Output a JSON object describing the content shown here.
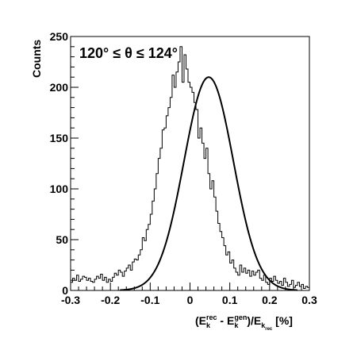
{
  "chart_data": {
    "type": "histogram",
    "title": "",
    "annotation": "120° ≤ θ ≤ 124°",
    "ylabel": "Counts",
    "xlabel": "(E_k^rec − E_k^gen)/E_k_rec [%]",
    "xlabel_parts": {
      "open": "(E",
      "sub1": "k",
      "sup1": "rec",
      "minus": " - E",
      "sub2": "k",
      "sup2": "gen",
      "mid": ")/E",
      "sub3": "k",
      "subsub3": "rec",
      "unit": " [%]"
    },
    "xlim": [
      -0.3,
      0.3
    ],
    "ylim": [
      0,
      250
    ],
    "xticks": [
      "-0.3",
      "-0.2",
      "-0.1",
      "0",
      "0.1",
      "0.2",
      "0.3"
    ],
    "yticks": [
      "0",
      "50",
      "100",
      "150",
      "200",
      "250"
    ],
    "grid": false,
    "bin_width": 0.005,
    "bin_edges_start": -0.3,
    "counts": [
      8,
      12,
      10,
      15,
      9,
      11,
      14,
      13,
      10,
      12,
      9,
      8,
      11,
      14,
      12,
      16,
      10,
      13,
      8,
      11,
      9,
      13,
      17,
      15,
      20,
      18,
      14,
      19,
      22,
      25,
      20,
      28,
      31,
      30,
      35,
      40,
      52,
      49,
      60,
      65,
      75,
      88,
      100,
      115,
      130,
      140,
      158,
      160,
      172,
      180,
      190,
      212,
      200,
      215,
      225,
      240,
      205,
      232,
      218,
      205,
      200,
      195,
      185,
      178,
      150,
      160,
      145,
      130,
      140,
      115,
      100,
      108,
      92,
      78,
      66,
      58,
      52,
      44,
      35,
      38,
      27,
      30,
      22,
      18,
      15,
      25,
      18,
      22,
      17,
      20,
      14,
      19,
      15,
      18,
      20,
      12,
      10,
      15,
      8,
      6,
      12,
      9,
      14,
      10,
      7,
      9,
      5,
      12,
      8,
      4,
      6,
      10,
      3,
      5,
      8,
      4,
      6,
      2,
      4,
      3
    ],
    "fit": {
      "type": "gaussian",
      "amplitude": 210,
      "mean": 0.047,
      "sigma": 0.062
    }
  }
}
